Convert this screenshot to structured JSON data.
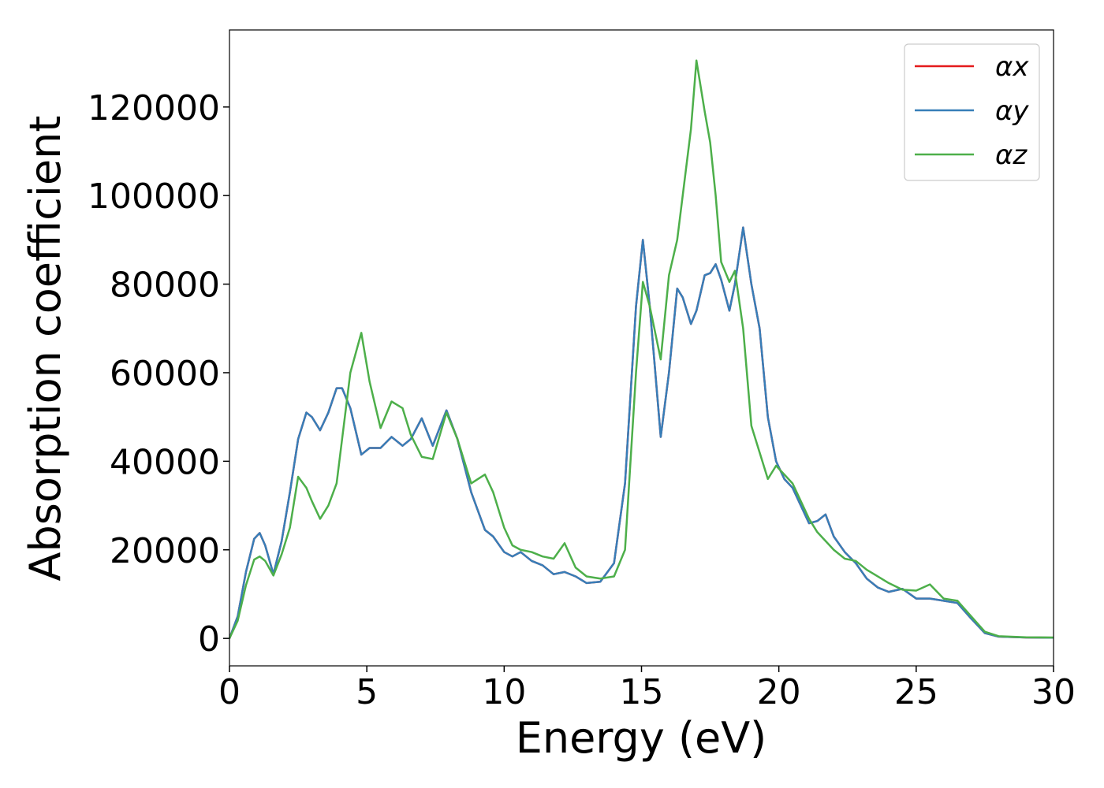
{
  "chart_data": {
    "type": "line",
    "xlabel": "Energy (eV)",
    "ylabel": "Absorption coefficient",
    "xlim": [
      0,
      30
    ],
    "ylim": [
      -6200,
      137400
    ],
    "xticks": [
      0,
      5,
      10,
      15,
      20,
      25,
      30
    ],
    "yticks": [
      0,
      20000,
      40000,
      60000,
      80000,
      100000,
      120000
    ],
    "legend": "upper right",
    "x": [
      0,
      0.3,
      0.6,
      0.9,
      1.1,
      1.3,
      1.6,
      1.9,
      2.2,
      2.5,
      2.8,
      3.0,
      3.3,
      3.6,
      3.9,
      4.1,
      4.4,
      4.8,
      5.1,
      5.5,
      5.9,
      6.3,
      6.6,
      7.0,
      7.4,
      7.9,
      8.3,
      8.8,
      9.3,
      9.6,
      10.0,
      10.3,
      10.6,
      11.0,
      11.4,
      11.8,
      12.2,
      12.6,
      13.0,
      13.5,
      14.0,
      14.4,
      14.8,
      15.05,
      15.3,
      15.7,
      16.0,
      16.3,
      16.5,
      16.8,
      17.0,
      17.3,
      17.5,
      17.7,
      17.9,
      18.2,
      18.4,
      18.7,
      19.0,
      19.3,
      19.6,
      19.9,
      20.2,
      20.5,
      20.8,
      21.1,
      21.4,
      21.7,
      22.0,
      22.4,
      22.8,
      23.2,
      23.6,
      24.0,
      24.5,
      25.0,
      25.5,
      26.0,
      26.5,
      27.0,
      27.5,
      28.0,
      29.0,
      30
    ],
    "series": [
      {
        "name": "αx",
        "color": "#e41a1c",
        "values": [
          0,
          5000,
          15000,
          22500,
          23800,
          21000,
          14500,
          22000,
          33000,
          45000,
          51000,
          50000,
          47000,
          51000,
          56500,
          56500,
          52000,
          41500,
          43000,
          43000,
          45500,
          43500,
          45000,
          49700,
          43500,
          51500,
          45000,
          33000,
          24500,
          23000,
          19500,
          18500,
          19500,
          17500,
          16500,
          14500,
          15000,
          14000,
          12500,
          12800,
          17000,
          35000,
          75000,
          90000,
          75000,
          45500,
          60000,
          79000,
          77000,
          71000,
          74000,
          82000,
          82500,
          84500,
          81000,
          74000,
          80000,
          92800,
          80000,
          70000,
          50000,
          40000,
          36000,
          34000,
          30000,
          26000,
          26500,
          28000,
          23000,
          19500,
          17000,
          13500,
          11500,
          10500,
          11200,
          9000,
          9000,
          8500,
          8000,
          4500,
          1200,
          400,
          200,
          150
        ]
      },
      {
        "name": "αy",
        "color": "#377eb8",
        "values": [
          0,
          5000,
          15000,
          22500,
          23800,
          21000,
          14500,
          22000,
          33000,
          45000,
          51000,
          50000,
          47000,
          51000,
          56500,
          56500,
          52000,
          41500,
          43000,
          43000,
          45500,
          43500,
          45000,
          49700,
          43500,
          51500,
          45000,
          33000,
          24500,
          23000,
          19500,
          18500,
          19500,
          17500,
          16500,
          14500,
          15000,
          14000,
          12500,
          12800,
          17000,
          35000,
          75000,
          90000,
          75000,
          45500,
          60000,
          79000,
          77000,
          71000,
          74000,
          82000,
          82500,
          84500,
          81000,
          74000,
          80000,
          92800,
          80000,
          70000,
          50000,
          40000,
          36000,
          34000,
          30000,
          26000,
          26500,
          28000,
          23000,
          19500,
          17000,
          13500,
          11500,
          10500,
          11200,
          9000,
          9000,
          8500,
          8000,
          4500,
          1200,
          400,
          200,
          150
        ]
      },
      {
        "name": "αz",
        "color": "#4daf4a",
        "values": [
          0,
          4000,
          12000,
          17800,
          18500,
          17500,
          14200,
          19000,
          25000,
          36500,
          34000,
          31000,
          27000,
          30000,
          35000,
          45000,
          60000,
          69000,
          58000,
          47500,
          53500,
          52000,
          46000,
          41000,
          40500,
          51000,
          45000,
          35000,
          37000,
          33000,
          25000,
          21000,
          20000,
          19500,
          18500,
          18000,
          21500,
          16000,
          14000,
          13500,
          14000,
          20000,
          60000,
          80500,
          75000,
          63000,
          82000,
          90000,
          100000,
          115000,
          130500,
          119000,
          112000,
          100000,
          85000,
          80500,
          83000,
          70000,
          48000,
          42000,
          36000,
          39000,
          37000,
          35000,
          31000,
          27000,
          24000,
          22000,
          20000,
          18000,
          17500,
          15500,
          14000,
          12500,
          11000,
          10800,
          12200,
          9000,
          8500,
          5000,
          1500,
          500,
          250,
          200
        ]
      }
    ]
  }
}
